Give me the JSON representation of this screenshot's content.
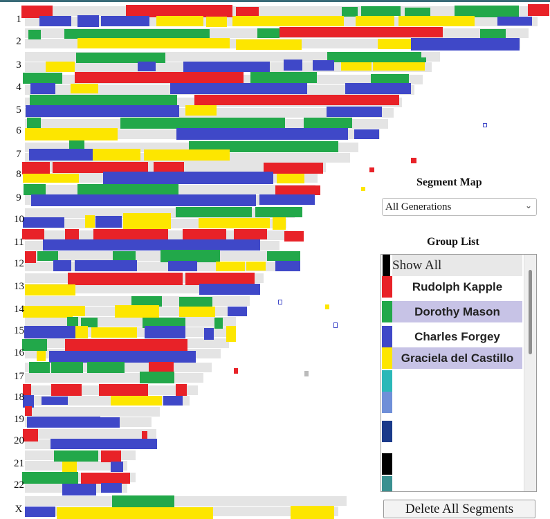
{
  "segment_map": {
    "title": "Segment Map",
    "selected_option": "All Generations"
  },
  "group_list": {
    "title": "Group List",
    "items": [
      {
        "label": "Show All",
        "color": "#000000"
      },
      {
        "label": "Rudolph Kapple",
        "color": "#e82228"
      },
      {
        "label": "Dorothy Mason",
        "color": "#22a84a"
      },
      {
        "label": "Charles Forgey",
        "color": "#3f48c8"
      },
      {
        "label": "Graciela del Castillo",
        "color": "#fde600"
      },
      {
        "label": "",
        "color": "#2bb8b8"
      },
      {
        "label": "",
        "color": "#6f8fd8"
      },
      {
        "label": "",
        "color": "#1a3a8a"
      },
      {
        "label": "",
        "color": "#000000"
      },
      {
        "label": "",
        "color": "#3a9090"
      }
    ]
  },
  "delete_button": "Delete All Segments",
  "chromosomes": [
    "1",
    "2",
    "3",
    "4",
    "5",
    "6",
    "7",
    "8",
    "9",
    "10",
    "11",
    "12",
    "13",
    "14",
    "15",
    "16",
    "17",
    "18",
    "19",
    "20",
    "21",
    "22",
    "X"
  ],
  "palette": {
    "R": "#e82228",
    "G": "#22a84a",
    "B": "#3f48c8",
    "Y": "#fde600",
    "K": "#000000",
    "T": "#2bb8b8",
    "S": "#bbbbbb"
  }
}
